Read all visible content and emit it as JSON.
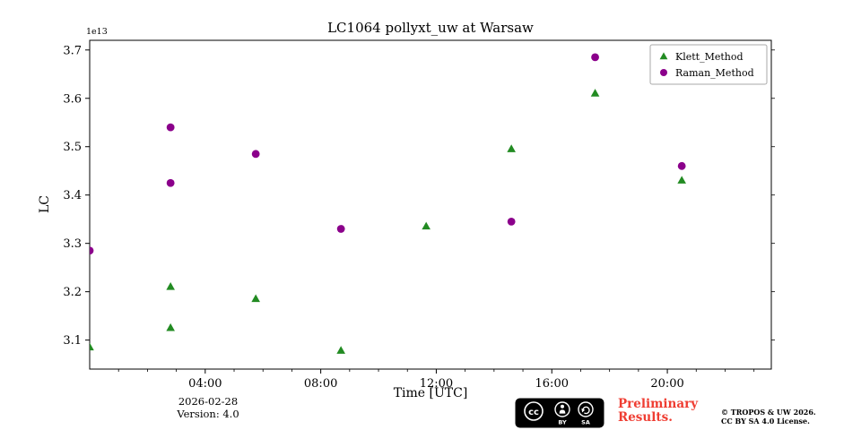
{
  "chart_data": {
    "type": "scatter",
    "title": "LC1064 pollyxt_uw at Warsaw",
    "xlabel": "Time [UTC]",
    "ylabel": "LC",
    "y_offset_text": "1e13",
    "grid": false,
    "legend": {
      "position": "top-right"
    },
    "x_axis": {
      "lim_hours": [
        0,
        23.6
      ],
      "tick_hours": [
        4,
        8,
        12,
        16,
        20
      ],
      "tick_labels": [
        "04:00",
        "08:00",
        "12:00",
        "16:00",
        "20:00"
      ],
      "minor_tick_every_hours": 1
    },
    "y_axis": {
      "lim": [
        3.04,
        3.72
      ],
      "ticks": [
        3.1,
        3.2,
        3.3,
        3.4,
        3.5,
        3.6,
        3.7
      ],
      "tick_labels": [
        "3.1",
        "3.2",
        "3.3",
        "3.4",
        "3.5",
        "3.6",
        "3.7"
      ]
    },
    "series": [
      {
        "name": "Klett_Method",
        "marker": "triangle",
        "color": "#228B22",
        "x_hours": [
          0.0,
          2.8,
          2.8,
          5.75,
          8.7,
          11.65,
          14.6,
          17.5,
          20.5
        ],
        "y_1e13": [
          3.085,
          3.21,
          3.125,
          3.185,
          3.078,
          3.335,
          3.495,
          3.61,
          3.43
        ]
      },
      {
        "name": "Raman_Method",
        "marker": "circle",
        "color": "#8B008B",
        "x_hours": [
          0.0,
          2.8,
          2.8,
          5.75,
          8.7,
          14.6,
          17.5,
          20.5
        ],
        "y_1e13": [
          3.285,
          3.54,
          3.425,
          3.485,
          3.33,
          3.345,
          3.685,
          3.46
        ]
      }
    ]
  },
  "footer": {
    "date": "2026-02-28",
    "version": "Version: 4.0",
    "preliminary": {
      "line1": "Preliminary",
      "line2": "Results.",
      "color": "#ef3d32"
    },
    "copyright": {
      "line1": "© TROPOS & UW 2026.",
      "line2": "CC BY SA 4.0 License."
    },
    "cc_badge": {
      "cc": "cc",
      "by": "BY",
      "sa": "SA"
    }
  }
}
